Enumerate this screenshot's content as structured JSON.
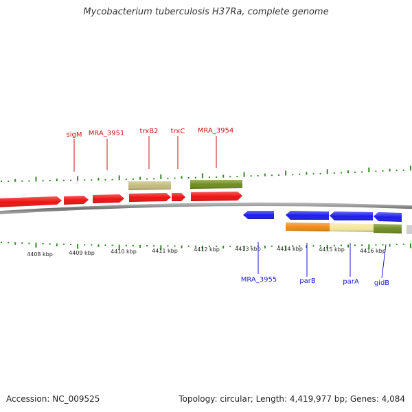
{
  "title": "Mycobacterium tuberculosis H37Ra, complete genome",
  "footer": {
    "accession": "Accession: NC_009525",
    "summary": "Topology: circular; Length: 4,419,977 bp; Genes: 4,084"
  },
  "colors": {
    "forward_gene": "#ee1111",
    "reverse_gene": "#1a1aee",
    "tan_feature": "#c2b97a",
    "olive_feature": "#6e8b1f",
    "orange_feature": "#f08a10",
    "pale_feature": "#f2e79a",
    "tick": "#2e8b22",
    "backbone": "#888888"
  },
  "scale": {
    "unit": "kbp",
    "labels": [
      "4408 kbp",
      "4409 kbp",
      "4410 kbp",
      "4411 kbp",
      "4412 kbp",
      "4413 kbp",
      "4414 kbp",
      "4415 kbp",
      "4416 kbp"
    ]
  },
  "forward_labels": [
    {
      "text": "sigM",
      "color": "#cc1111"
    },
    {
      "text": "MRA_3951",
      "color": "#cc1111"
    },
    {
      "text": "trxB2",
      "color": "#cc1111"
    },
    {
      "text": "trxC",
      "color": "#cc1111"
    },
    {
      "text": "MRA_3954",
      "color": "#cc1111"
    }
  ],
  "reverse_labels": [
    {
      "text": "MRA_3955",
      "color": "#1a1acc"
    },
    {
      "text": "parB",
      "color": "#1a1acc"
    },
    {
      "text": "parA",
      "color": "#1a1acc"
    },
    {
      "text": "gidB",
      "color": "#1a1acc"
    }
  ]
}
